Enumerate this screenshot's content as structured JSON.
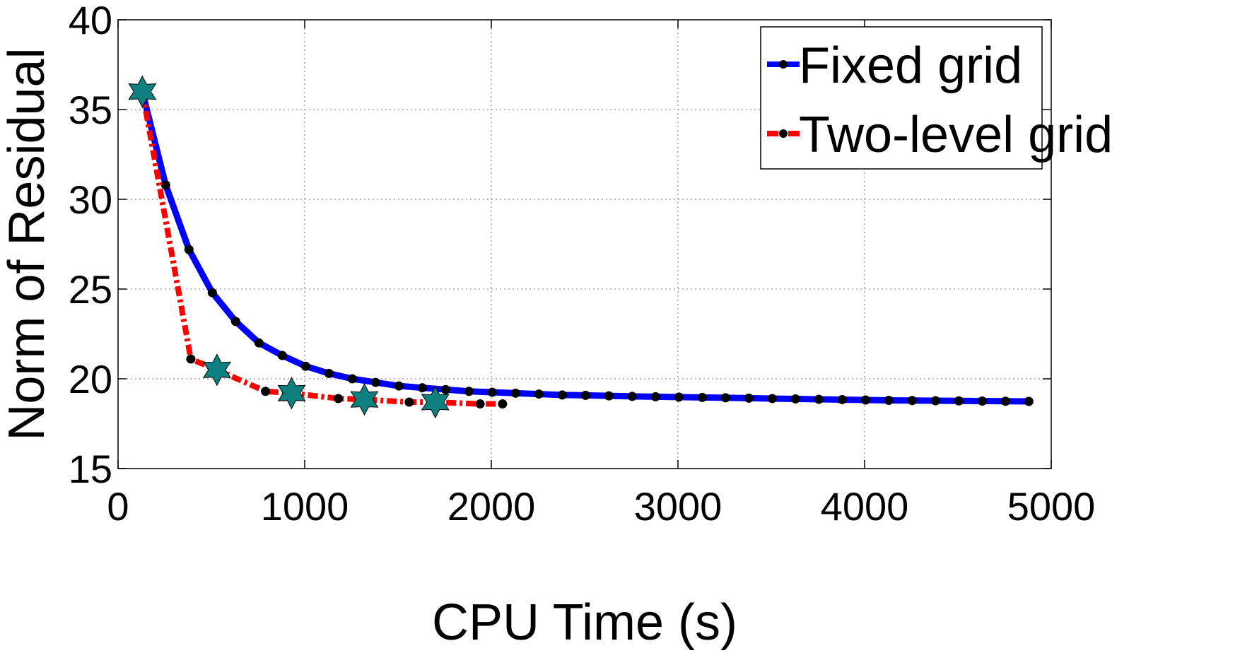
{
  "chart_data": {
    "type": "line",
    "title": "",
    "xlabel": "CPU Time (s)",
    "ylabel": "Norm of Residual",
    "xlim": [
      0,
      5000
    ],
    "ylim": [
      15,
      40
    ],
    "xticks": [
      0,
      1000,
      2000,
      3000,
      4000,
      5000
    ],
    "xtick_labels": [
      "0",
      "1000",
      "2000",
      "3000",
      "4000",
      "5000"
    ],
    "yticks": [
      15,
      20,
      25,
      30,
      35,
      40
    ],
    "ytick_labels": [
      "15",
      "20",
      "25",
      "30",
      "35",
      "40"
    ],
    "grid": true,
    "legend_position": "top-right",
    "series": [
      {
        "name": "Fixed grid",
        "color": "#0000ff",
        "line_style": "solid",
        "marker": "black-circle",
        "x": [
          130,
          255,
          380,
          505,
          630,
          755,
          880,
          1005,
          1130,
          1255,
          1380,
          1505,
          1630,
          1755,
          1880,
          2005,
          2130,
          2255,
          2380,
          2505,
          2630,
          2755,
          2880,
          3005,
          3130,
          3255,
          3380,
          3505,
          3630,
          3755,
          3880,
          4005,
          4130,
          4255,
          4380,
          4505,
          4630,
          4755,
          4880
        ],
        "y": [
          36.0,
          30.8,
          27.2,
          24.8,
          23.2,
          22.0,
          21.3,
          20.7,
          20.3,
          20.0,
          19.8,
          19.6,
          19.5,
          19.4,
          19.3,
          19.25,
          19.2,
          19.15,
          19.1,
          19.08,
          19.05,
          19.02,
          19.0,
          18.98,
          18.96,
          18.94,
          18.92,
          18.9,
          18.88,
          18.86,
          18.84,
          18.82,
          18.8,
          18.79,
          18.78,
          18.77,
          18.76,
          18.75,
          18.74
        ]
      },
      {
        "name": "Two-level grid",
        "color": "#ff0000",
        "line_style": "dash-dot",
        "marker": "black-circle",
        "x": [
          130,
          390,
          530,
          790,
          930,
          1180,
          1320,
          1560,
          1700,
          1940,
          2060
        ],
        "y": [
          36.0,
          21.1,
          20.5,
          19.3,
          19.2,
          18.9,
          18.85,
          18.7,
          18.7,
          18.6,
          18.6
        ]
      }
    ],
    "special_markers": {
      "name": "star",
      "color": "#0f8080",
      "x": [
        130,
        530,
        930,
        1320,
        1700
      ],
      "y": [
        36.0,
        20.5,
        19.2,
        18.85,
        18.7
      ]
    },
    "legend": [
      {
        "label": "Fixed grid",
        "color": "#0000ff"
      },
      {
        "label": "Two-level grid",
        "color": "#ff0000"
      }
    ]
  }
}
